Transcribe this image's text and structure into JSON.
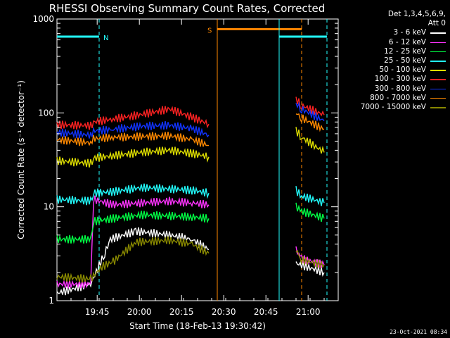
{
  "chart_data": {
    "type": "line",
    "title": "RHESSI Observing Summary Count Rates, Corrected",
    "xlabel": "Start Time (18-Feb-13 19:30:42)",
    "ylabel": "Corrected Count Rate (s⁻¹ detector⁻¹)",
    "yscale": "log",
    "ylim": [
      1,
      1000
    ],
    "xlim_minutes": [
      0,
      100
    ],
    "x_tick_minutes": [
      14.3,
      29.3,
      44.3,
      59.3,
      74.3,
      89.3
    ],
    "x_tick_labels": [
      "19:45",
      "20:00",
      "20:15",
      "20:30",
      "20:45",
      "21:00"
    ],
    "y_tick_values": [
      1,
      10,
      100,
      1000
    ],
    "y_tick_labels": [
      "1",
      "10",
      "100",
      "1000"
    ],
    "legend_header": [
      "Det 1,3,4,5,6,9,",
      "Att 0"
    ],
    "series": [
      {
        "name": "3 - 6 keV",
        "color": "#ffffff",
        "segments": [
          [
            [
              0,
              1.2
            ],
            [
              12,
              1.5
            ],
            [
              17,
              3.2
            ],
            [
              19,
              4.5
            ],
            [
              28,
              5.5
            ],
            [
              40,
              5.0
            ],
            [
              48,
              4.5
            ],
            [
              54,
              3.5
            ]
          ],
          [
            [
              85,
              2.5
            ],
            [
              95,
              2.0
            ]
          ]
        ]
      },
      {
        "name": "6 - 12 keV",
        "color": "#ff33ff",
        "segments": [
          [
            [
              0,
              1.5
            ],
            [
              12,
              1.5
            ],
            [
              13,
              12
            ],
            [
              20,
              10.5
            ],
            [
              30,
              11
            ],
            [
              40,
              11.5
            ],
            [
              48,
              11
            ],
            [
              54,
              10.5
            ]
          ],
          [
            [
              85,
              3.5
            ],
            [
              87,
              2.8
            ],
            [
              95,
              2.4
            ]
          ]
        ]
      },
      {
        "name": "12 - 25 keV",
        "color": "#00ff44",
        "segments": [
          [
            [
              0,
              4.5
            ],
            [
              12,
              4.5
            ],
            [
              13,
              7
            ],
            [
              20,
              7.5
            ],
            [
              30,
              8.2
            ],
            [
              40,
              8.0
            ],
            [
              48,
              7.8
            ],
            [
              54,
              7.5
            ]
          ],
          [
            [
              85,
              10
            ],
            [
              87,
              9
            ],
            [
              95,
              7.5
            ]
          ]
        ]
      },
      {
        "name": "25 - 50 keV",
        "color": "#22ffff",
        "segments": [
          [
            [
              0,
              12
            ],
            [
              12,
              11.5
            ],
            [
              13,
              14
            ],
            [
              20,
              14.5
            ],
            [
              30,
              16
            ],
            [
              40,
              15.5
            ],
            [
              48,
              15
            ],
            [
              54,
              14
            ]
          ],
          [
            [
              85,
              15
            ],
            [
              87,
              13
            ],
            [
              95,
              11
            ]
          ]
        ]
      },
      {
        "name": "50 - 100 keV",
        "color": "#dddd00",
        "segments": [
          [
            [
              0,
              31
            ],
            [
              12,
              29
            ],
            [
              13,
              33
            ],
            [
              20,
              35
            ],
            [
              30,
              38
            ],
            [
              40,
              40
            ],
            [
              48,
              37
            ],
            [
              54,
              34
            ]
          ],
          [
            [
              85,
              65
            ],
            [
              87,
              55
            ],
            [
              95,
              38
            ]
          ]
        ]
      },
      {
        "name": "100 - 300 keV",
        "color": "#ff2222",
        "segments": [
          [
            [
              0,
              75
            ],
            [
              12,
              73
            ],
            [
              13,
              80
            ],
            [
              20,
              86
            ],
            [
              30,
              96
            ],
            [
              40,
              110
            ],
            [
              48,
              90
            ],
            [
              54,
              76
            ]
          ],
          [
            [
              85,
              140
            ],
            [
              87,
              120
            ],
            [
              95,
              95
            ]
          ]
        ]
      },
      {
        "name": "300 - 800 keV",
        "color": "#1133ff",
        "segments": [
          [
            [
              0,
              62
            ],
            [
              12,
              58
            ],
            [
              13,
              64
            ],
            [
              20,
              67
            ],
            [
              30,
              72
            ],
            [
              40,
              74
            ],
            [
              48,
              68
            ],
            [
              54,
              58
            ]
          ],
          [
            [
              85,
              125
            ],
            [
              87,
              110
            ],
            [
              95,
              82
            ]
          ]
        ]
      },
      {
        "name": "800 - 7000 keV",
        "color": "#ff8800",
        "segments": [
          [
            [
              0,
              52
            ],
            [
              12,
              48
            ],
            [
              13,
              53
            ],
            [
              20,
              55
            ],
            [
              30,
              56
            ],
            [
              40,
              57
            ],
            [
              48,
              52
            ],
            [
              54,
              45
            ]
          ],
          [
            [
              85,
              100
            ],
            [
              87,
              88
            ],
            [
              95,
              67
            ]
          ]
        ]
      },
      {
        "name": "7000 - 15000 keV",
        "color": "#888800",
        "segments": [
          [
            [
              0,
              1.8
            ],
            [
              12,
              1.7
            ],
            [
              16,
              2.3
            ],
            [
              20,
              2.6
            ],
            [
              28,
              4.2
            ],
            [
              40,
              4.4
            ],
            [
              48,
              4.0
            ],
            [
              54,
              3.2
            ]
          ],
          [
            [
              85,
              3.5
            ],
            [
              87,
              2.7
            ],
            [
              95,
              2.4
            ]
          ]
        ]
      }
    ],
    "bars": [
      {
        "label": "N",
        "color": "#22ffff",
        "level": 650,
        "from": 0,
        "to": 15
      },
      {
        "label": "S",
        "color": "#ff8800",
        "level": 780,
        "from": 57,
        "to": 87
      },
      {
        "label": "",
        "color": "#22ffff",
        "level": 650,
        "from": 79,
        "to": 96
      }
    ],
    "vlines": [
      {
        "x": 15,
        "color": "#22ffff",
        "dashed": true
      },
      {
        "x": 57,
        "color": "#ff8800",
        "dashed": false
      },
      {
        "x": 79,
        "color": "#22ffff",
        "dashed": false
      },
      {
        "x": 87,
        "color": "#ff8800",
        "dashed": true
      },
      {
        "x": 96,
        "color": "#22ffff",
        "dashed": true
      }
    ]
  },
  "timestamp": "23-Oct-2021 08:34"
}
